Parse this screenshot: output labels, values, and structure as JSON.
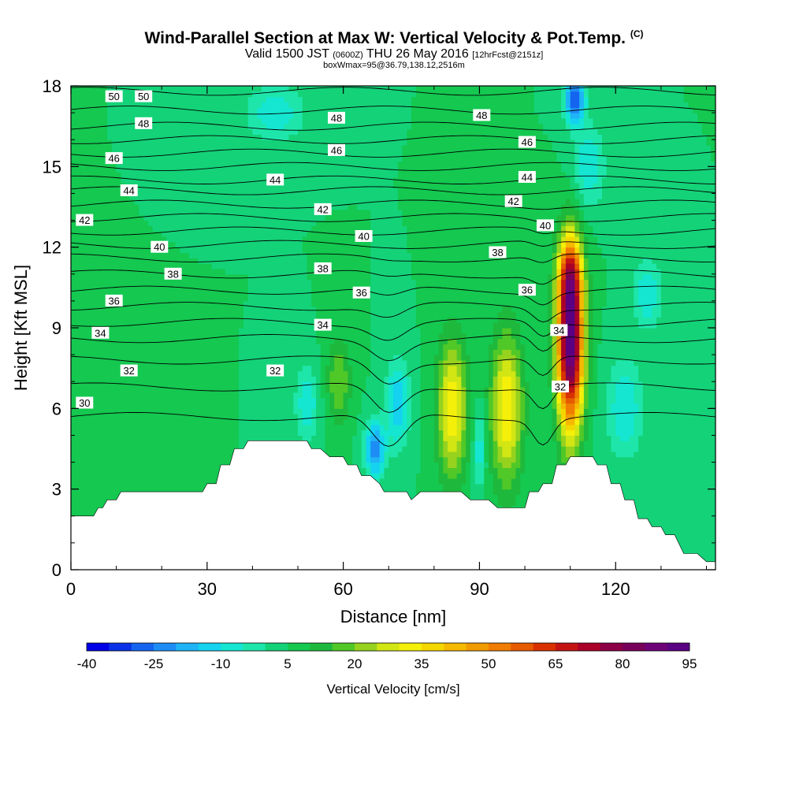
{
  "header": {
    "title": "Wind-Parallel Section at Max W: Vertical Velocity & Pot.Temp.",
    "title_mark": "(C)",
    "valid_prefix": "Valid 1500 JST",
    "valid_utc": "(0600Z)",
    "valid_date": "THU 26 May 2016",
    "valid_fcst": "[12hrFcst@2151z]",
    "box_info": "boxWmax=95@36.79,138.12,2516m"
  },
  "chart_data": {
    "type": "heatmap",
    "title": "Wind-Parallel Section at Max W: Vertical Velocity & Pot.Temp.",
    "xlabel": "Distance [nm]",
    "ylabel": "Height [Kft MSL]",
    "xlim": [
      0,
      142
    ],
    "ylim": [
      0,
      18
    ],
    "x_ticks": [
      0,
      30,
      60,
      90,
      120
    ],
    "y_ticks": [
      0,
      3,
      6,
      9,
      12,
      15,
      18
    ],
    "colorbar": {
      "label": "Vertical Velocity [cm/s]",
      "tick_labels": [
        "-40",
        "-25",
        "-10",
        "5",
        "20",
        "35",
        "50",
        "65",
        "80",
        "95"
      ],
      "levels": [
        -40,
        -35,
        -30,
        -25,
        -20,
        -15,
        -10,
        -5,
        0,
        5,
        10,
        15,
        20,
        25,
        30,
        35,
        40,
        45,
        50,
        55,
        60,
        65,
        70,
        75,
        80,
        85,
        90,
        95
      ],
      "colors": [
        "#0000e6",
        "#0a32e6",
        "#1464f0",
        "#1e8cf5",
        "#1eb4f5",
        "#14d2f0",
        "#14e6d2",
        "#1ee6aa",
        "#14d278",
        "#14c850",
        "#1eb93c",
        "#50c828",
        "#96d21e",
        "#d2e614",
        "#f5f00a",
        "#f5d700",
        "#f5b900",
        "#f09b00",
        "#f07d00",
        "#e65a00",
        "#d73200",
        "#c31414",
        "#aa0028",
        "#8c0046",
        "#78005a",
        "#6e0078",
        "#5a0082"
      ]
    },
    "background_value": 5,
    "velocity_features": [
      {
        "x": 84,
        "y": 6.0,
        "rx": 3.2,
        "ry": 2.6,
        "peak": 35
      },
      {
        "x": 96,
        "y": 6.0,
        "rx": 3.5,
        "ry": 2.8,
        "peak": 35
      },
      {
        "x": 110,
        "y": 8.5,
        "rx": 2.8,
        "ry": 3.2,
        "peak": 95
      },
      {
        "x": 110,
        "y": 11.0,
        "rx": 2.5,
        "ry": 1.3,
        "peak": 35
      },
      {
        "x": 59,
        "y": 7.0,
        "rx": 2.6,
        "ry": 1.5,
        "peak": 20
      },
      {
        "x": 111,
        "y": 17.5,
        "rx": 2.2,
        "ry": 0.9,
        "peak": -30
      },
      {
        "x": 67,
        "y": 4.5,
        "rx": 2.2,
        "ry": 1.0,
        "peak": -25
      },
      {
        "x": 72,
        "y": 6.2,
        "rx": 2.5,
        "ry": 1.6,
        "peak": -15
      },
      {
        "x": 52,
        "y": 6.2,
        "rx": 2.5,
        "ry": 1.3,
        "peak": -10
      },
      {
        "x": 90,
        "y": 4.5,
        "rx": 1.3,
        "ry": 1.5,
        "peak": -10
      },
      {
        "x": 122,
        "y": 6.0,
        "rx": 4.0,
        "ry": 1.8,
        "peak": -10
      },
      {
        "x": 127,
        "y": 10.3,
        "rx": 3.0,
        "ry": 1.3,
        "peak": -10
      },
      {
        "x": 114,
        "y": 15.0,
        "rx": 3.5,
        "ry": 1.5,
        "peak": -10
      },
      {
        "x": 45,
        "y": 17.0,
        "rx": 6.0,
        "ry": 1.0,
        "peak": -10
      },
      {
        "x": 35,
        "y": 14.0,
        "rx": 8.0,
        "ry": 2.5,
        "peak": 5
      },
      {
        "x": 128,
        "y": 2.0,
        "rx": 3.5,
        "ry": 1.5,
        "peak": 5
      }
    ],
    "terrain": {
      "x": [
        0,
        1.5,
        2,
        5,
        6,
        7,
        8,
        10,
        11,
        13,
        14,
        17,
        20,
        23,
        26,
        29,
        30,
        32,
        33,
        35,
        36,
        38,
        39,
        41,
        42,
        44,
        46,
        48,
        50,
        52,
        53,
        55,
        57,
        58,
        60,
        61,
        63,
        64,
        66,
        68,
        69,
        71,
        73,
        74,
        75,
        77,
        80,
        83,
        86,
        88,
        90,
        92,
        94,
        96,
        98,
        100,
        101,
        103,
        104,
        106,
        107,
        109,
        110,
        112,
        113,
        115,
        116,
        118,
        119,
        121,
        122,
        124,
        125,
        127,
        128,
        130,
        131,
        133,
        135,
        137,
        138,
        140,
        142
      ],
      "y": [
        2.0,
        2.0,
        2.0,
        2.0,
        2.3,
        2.3,
        2.6,
        2.6,
        2.9,
        2.9,
        2.9,
        2.9,
        2.9,
        2.9,
        2.9,
        2.9,
        3.2,
        3.2,
        3.9,
        3.9,
        4.5,
        4.5,
        4.8,
        4.8,
        4.8,
        4.8,
        4.8,
        4.8,
        4.8,
        4.8,
        4.5,
        4.5,
        4.2,
        4.2,
        4.2,
        3.9,
        3.9,
        3.5,
        3.5,
        3.2,
        2.9,
        2.9,
        2.9,
        2.9,
        2.6,
        2.9,
        2.9,
        2.9,
        2.9,
        2.6,
        2.6,
        2.6,
        2.3,
        2.3,
        2.3,
        2.3,
        2.9,
        2.9,
        3.2,
        3.2,
        3.9,
        3.9,
        4.2,
        4.2,
        4.2,
        4.2,
        3.9,
        3.9,
        3.2,
        3.2,
        2.6,
        2.6,
        1.9,
        1.9,
        1.6,
        1.6,
        1.3,
        1.3,
        0.6,
        0.6,
        0.6,
        0.3,
        0.3
      ]
    },
    "isentropes": {
      "levels": [
        30,
        31,
        32,
        33,
        34,
        35,
        36,
        37,
        38,
        39,
        40,
        41,
        42,
        43,
        44,
        45,
        46,
        47,
        48,
        49,
        50
      ],
      "heights_far_from_peaks": [
        5.7,
        6.8,
        7.8,
        8.6,
        9.2,
        9.8,
        10.4,
        11.0,
        11.6,
        12.1,
        12.6,
        13.1,
        13.6,
        14.1,
        14.5,
        15.0,
        15.5,
        16.0,
        16.5,
        17.1,
        17.8
      ],
      "labels": [
        {
          "text": "30",
          "x": 3.0,
          "y": 6.2
        },
        {
          "text": "32",
          "x": 12.8,
          "y": 7.4
        },
        {
          "text": "32",
          "x": 45.0,
          "y": 7.4
        },
        {
          "text": "32",
          "x": 107.8,
          "y": 6.8
        },
        {
          "text": "34",
          "x": 6.5,
          "y": 8.8
        },
        {
          "text": "34",
          "x": 55.5,
          "y": 9.1
        },
        {
          "text": "34",
          "x": 107.5,
          "y": 8.9
        },
        {
          "text": "36",
          "x": 9.5,
          "y": 10.0
        },
        {
          "text": "36",
          "x": 64.0,
          "y": 10.3
        },
        {
          "text": "36",
          "x": 100.5,
          "y": 10.4
        },
        {
          "text": "38",
          "x": 22.5,
          "y": 11.0
        },
        {
          "text": "38",
          "x": 55.5,
          "y": 11.2
        },
        {
          "text": "38",
          "x": 94.0,
          "y": 11.8
        },
        {
          "text": "40",
          "x": 19.5,
          "y": 12.0
        },
        {
          "text": "40",
          "x": 64.5,
          "y": 12.4
        },
        {
          "text": "40",
          "x": 104.5,
          "y": 12.8
        },
        {
          "text": "42",
          "x": 3.0,
          "y": 13.0
        },
        {
          "text": "42",
          "x": 55.5,
          "y": 13.4
        },
        {
          "text": "42",
          "x": 97.5,
          "y": 13.7
        },
        {
          "text": "44",
          "x": 12.8,
          "y": 14.1
        },
        {
          "text": "44",
          "x": 45.0,
          "y": 14.5
        },
        {
          "text": "44",
          "x": 100.5,
          "y": 14.6
        },
        {
          "text": "46",
          "x": 9.5,
          "y": 15.3
        },
        {
          "text": "46",
          "x": 58.5,
          "y": 15.6
        },
        {
          "text": "46",
          "x": 100.5,
          "y": 15.9
        },
        {
          "text": "48",
          "x": 16.0,
          "y": 16.6
        },
        {
          "text": "48",
          "x": 58.5,
          "y": 16.8
        },
        {
          "text": "48",
          "x": 90.5,
          "y": 16.9
        },
        {
          "text": "50",
          "x": 9.5,
          "y": 17.6
        },
        {
          "text": "50",
          "x": 16.0,
          "y": 17.6
        }
      ]
    }
  }
}
